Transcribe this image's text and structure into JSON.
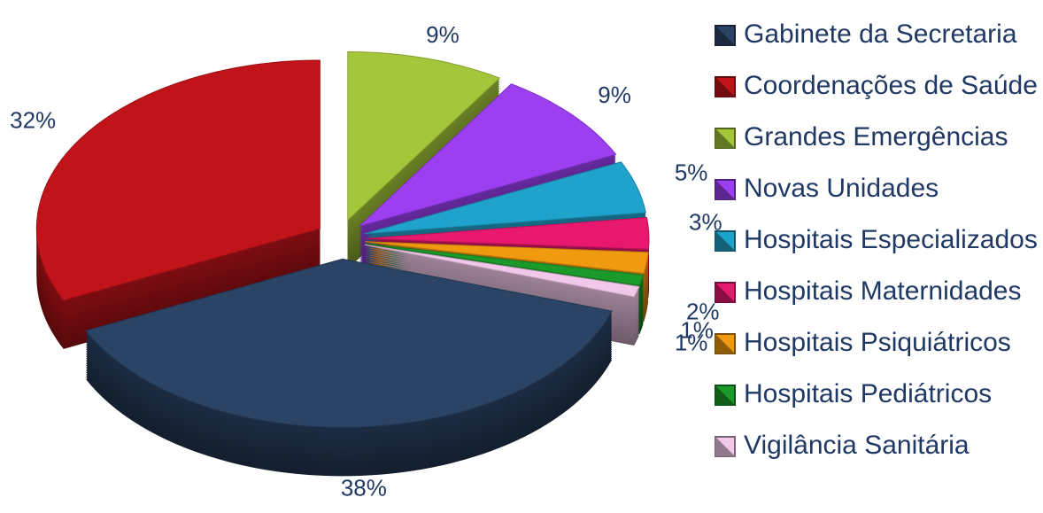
{
  "chart_data": {
    "type": "pie",
    "categories": [
      "Gabinete da Secretaria",
      "Coordenações de Saúde",
      "Grandes Emergências",
      "Novas Unidades",
      "Hospitais Especializados",
      "Hospitais Maternidades",
      "Hospitais Psiquiátricos",
      "Hospitais Pediátricos",
      "Vigilância Sanitária"
    ],
    "values": [
      38,
      32,
      9,
      9,
      5,
      3,
      2,
      1,
      1
    ],
    "value_labels": [
      "38%",
      "32%",
      "9%",
      "9%",
      "5%",
      "3%",
      "2%",
      "1%",
      "1%"
    ],
    "colors": [
      "#2b4466",
      "#c0141a",
      "#a4c63a",
      "#9b3ff0",
      "#1fa3cc",
      "#e8186e",
      "#f09a10",
      "#1a9a2a",
      "#f2c8ea"
    ],
    "legend": "right"
  }
}
